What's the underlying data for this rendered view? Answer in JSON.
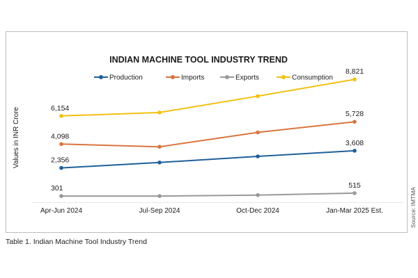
{
  "chart_data": {
    "type": "line",
    "title": "INDIAN MACHINE TOOL INDUSTRY TREND",
    "ylabel": "Values in INR Crore",
    "xlabel": "",
    "categories": [
      "Apr-Jun 2024",
      "Jul-Sep 2024",
      "Oct-Dec 2024",
      "Jan-Mar 2025 Est."
    ],
    "ylim": [
      0,
      10000
    ],
    "grid": false,
    "legend_position": "top",
    "series": [
      {
        "name": "Production",
        "color": "#1f5f99",
        "values": [
          2356,
          2750,
          3200,
          3608
        ],
        "labels": [
          "2,356",
          "",
          "",
          "3,608"
        ]
      },
      {
        "name": "Imports",
        "color": "#d9743f",
        "values": [
          4098,
          3900,
          4950,
          5728
        ],
        "labels": [
          "4,098",
          "",
          "",
          "5,728"
        ]
      },
      {
        "name": "Exports",
        "color": "#999999",
        "values": [
          301,
          300,
          370,
          515
        ],
        "labels": [
          "301",
          "",
          "",
          "515"
        ]
      },
      {
        "name": "Consumption",
        "color": "#f2c010",
        "values": [
          6154,
          6400,
          7600,
          8821
        ],
        "labels": [
          "6,154",
          "",
          "",
          "8,821"
        ]
      }
    ]
  },
  "source_note": "Source: IMTMA",
  "caption": "Table 1. Indian Machine Tool Industry Trend"
}
